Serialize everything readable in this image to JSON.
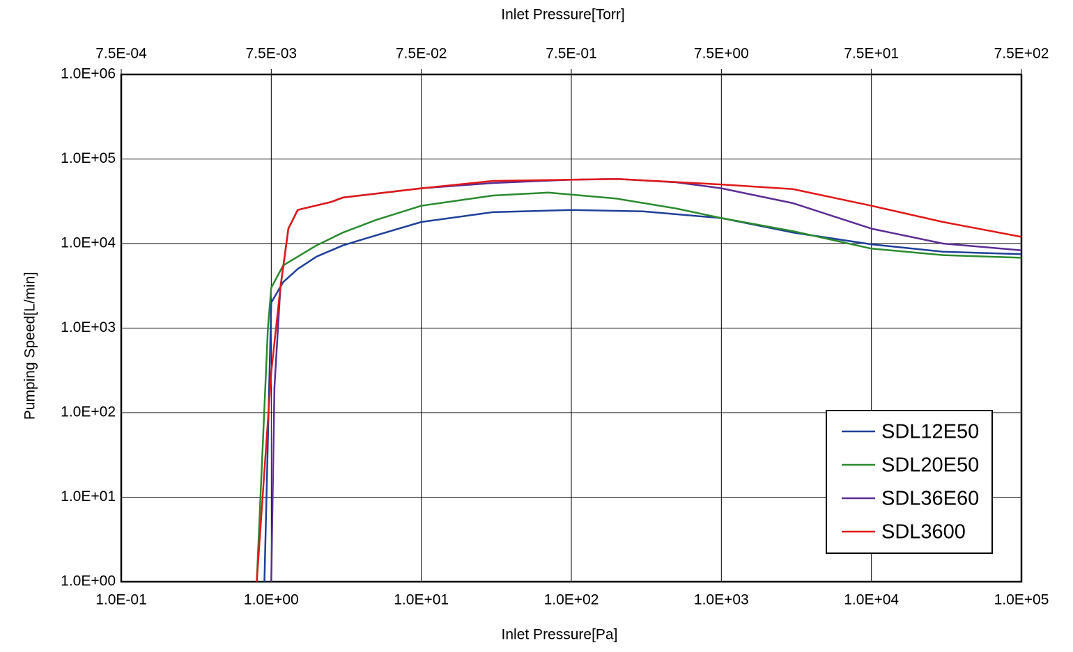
{
  "chart_data": {
    "type": "line",
    "xlabel": "Inlet Pressure[Pa]",
    "x2label": "Inlet Pressure[Torr]",
    "ylabel": "Pumping Speed[L/min]",
    "xscale": "log",
    "yscale": "log",
    "grid": true,
    "legend": "lower right",
    "xlim": [
      0.1,
      100000
    ],
    "xticks": [
      {
        "value": 0.1,
        "label": "1.0E-01"
      },
      {
        "value": 1,
        "label": "1.0E+00"
      },
      {
        "value": 10,
        "label": "1.0E+01"
      },
      {
        "value": 100,
        "label": "1.0E+02"
      },
      {
        "value": 1000,
        "label": "1.0E+03"
      },
      {
        "value": 10000,
        "label": "1.0E+04"
      },
      {
        "value": 100000,
        "label": "1.0E+05"
      }
    ],
    "x2lim": [
      0.00075,
      750
    ],
    "x2ticks": [
      {
        "value": 0.00075,
        "label": "7.5E-04"
      },
      {
        "value": 0.0075,
        "label": "7.5E-03"
      },
      {
        "value": 0.075,
        "label": "7.5E-02"
      },
      {
        "value": 0.75,
        "label": "7.5E-01"
      },
      {
        "value": 7.5,
        "label": "7.5E+00"
      },
      {
        "value": 75,
        "label": "7.5E+01"
      },
      {
        "value": 750,
        "label": "7.5E+02"
      }
    ],
    "ylim": [
      1,
      1000000
    ],
    "yticks": [
      {
        "value": 1,
        "label": "1.0E+00"
      },
      {
        "value": 10,
        "label": "1.0E+01"
      },
      {
        "value": 100,
        "label": "1.0E+02"
      },
      {
        "value": 1000,
        "label": "1.0E+03"
      },
      {
        "value": 10000,
        "label": "1.0E+04"
      },
      {
        "value": 100000,
        "label": "1.0E+05"
      },
      {
        "value": 1000000,
        "label": "1.0E+06"
      }
    ],
    "series": [
      {
        "name": "SDL12E50",
        "color": "#1f3f99",
        "x": [
          0.9,
          1.0,
          1.2,
          1.5,
          2,
          3,
          5,
          10,
          30,
          100,
          300,
          1000,
          3000,
          10000,
          30000,
          100000
        ],
        "values": [
          1,
          2000,
          3500,
          5000,
          7000,
          9500,
          12500,
          18000,
          23500,
          25000,
          24000,
          20000,
          13500,
          9800,
          8000,
          7500
        ]
      },
      {
        "name": "SDL20E50",
        "color": "#2a8a2e",
        "x": [
          0.8,
          0.95,
          1.0,
          1.2,
          2,
          3,
          5,
          10,
          30,
          70,
          200,
          500,
          1000,
          3000,
          10000,
          30000,
          100000
        ],
        "values": [
          1,
          1000,
          3000,
          5500,
          9500,
          13500,
          19000,
          28000,
          37000,
          40000,
          34000,
          26000,
          20000,
          14000,
          8700,
          7300,
          6800
        ]
      },
      {
        "name": "SDL36E60",
        "color": "#5b2d94",
        "x": [
          1.0,
          1.05,
          1.15,
          1.3,
          1.5,
          2.5,
          3,
          10,
          30,
          100,
          200,
          500,
          1000,
          3000,
          10000,
          30000,
          100000
        ],
        "values": [
          1,
          200,
          3000,
          15000,
          25000,
          31000,
          35000,
          45000,
          52000,
          57000,
          58000,
          53000,
          45000,
          30000,
          15000,
          10000,
          8300
        ]
      },
      {
        "name": "SDL3600",
        "color": "#e01818",
        "x": [
          0.8,
          1.0,
          1.15,
          1.3,
          1.5,
          2.5,
          3,
          10,
          30,
          100,
          200,
          1000,
          3000,
          10000,
          30000,
          100000
        ],
        "values": [
          1,
          300,
          3000,
          15000,
          25000,
          31000,
          35000,
          45000,
          55000,
          57000,
          58000,
          50000,
          44000,
          28000,
          18000,
          12000
        ]
      }
    ]
  }
}
